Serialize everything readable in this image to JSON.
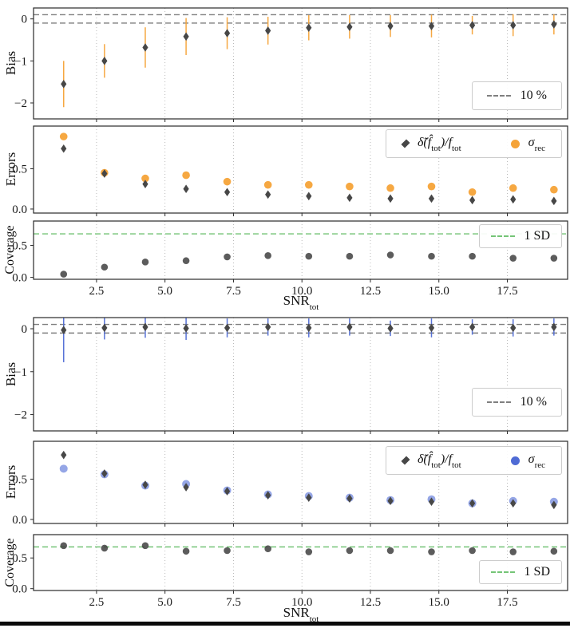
{
  "figure": {
    "xlim": [
      0.2,
      19.7
    ],
    "x": [
      1.3,
      2.79,
      4.28,
      5.77,
      7.27,
      8.76,
      10.25,
      11.74,
      13.23,
      14.73,
      16.22,
      17.71,
      19.2
    ],
    "xticks": [
      2.5,
      5.0,
      7.5,
      10.0,
      12.5,
      15.0,
      17.5
    ],
    "xtick_labels": [
      "2.5",
      "5.0",
      "7.5",
      "10.0",
      "12.5",
      "15.0",
      "17.5"
    ],
    "xlabel": {
      "text": "SNR",
      "sub": "tot"
    },
    "grid": "vertical-dotted",
    "colors": {
      "orange": "#f5a338",
      "blue": "#4f6bd5",
      "dark": "#474747",
      "gray": "#7f7f7f",
      "green": "#74c476"
    }
  },
  "labels": {
    "bias": "Bias",
    "errors": "Errors",
    "coverage": "Coverage",
    "legend_10pct": "10 %",
    "legend_1sd": "1 SD",
    "err_series1": {
      "p1": "δ̃(f̂",
      "s1": "tot",
      "p2": ")/f",
      "s2": "tot"
    },
    "err_series2": {
      "p1": "σ",
      "s1": "rec"
    }
  },
  "chart_data": [
    {
      "name": "bias-top",
      "type": "scatter",
      "ylabel": "Bias",
      "ylim": [
        -2.38,
        0.26
      ],
      "yticks": [
        0,
        -1,
        -2
      ],
      "ytick_labels": [
        "0",
        "−1",
        "−2"
      ],
      "hlines": [
        {
          "y": 0.1,
          "color": "#7f7f7f",
          "label": "10 %"
        },
        {
          "y": -0.1,
          "color": "#7f7f7f"
        }
      ],
      "show_xticklabels": false,
      "series": [
        {
          "name": "bias",
          "marker": "diamond",
          "color": "#474747",
          "y": [
            -1.55,
            -1.0,
            -0.68,
            -0.42,
            -0.34,
            -0.28,
            -0.21,
            -0.19,
            -0.17,
            -0.17,
            -0.15,
            -0.15,
            -0.13
          ],
          "yerr": [
            0.55,
            0.4,
            0.48,
            0.44,
            0.38,
            0.33,
            0.3,
            0.28,
            0.26,
            0.27,
            0.22,
            0.26,
            0.24
          ],
          "err_color": "#f5a338"
        }
      ]
    },
    {
      "name": "errors-top",
      "type": "scatter",
      "ylabel": "Errors",
      "ylim": [
        -0.05,
        1.03
      ],
      "yticks": [
        0.0,
        0.5
      ],
      "ytick_labels": [
        "0.0",
        "0.5"
      ],
      "hlines": [],
      "show_xticklabels": false,
      "series": [
        {
          "name": "delta_f_over_f",
          "marker": "diamond",
          "color": "#474747",
          "y": [
            0.75,
            0.44,
            0.31,
            0.25,
            0.21,
            0.18,
            0.16,
            0.14,
            0.13,
            0.13,
            0.11,
            0.12,
            0.1
          ]
        },
        {
          "name": "sigma_rec",
          "marker": "circle",
          "color": "#f5a338",
          "alpha": 0.95,
          "size": 4.8,
          "y": [
            0.9,
            0.45,
            0.38,
            0.42,
            0.34,
            0.3,
            0.3,
            0.28,
            0.26,
            0.28,
            0.21,
            0.26,
            0.24
          ]
        }
      ]
    },
    {
      "name": "coverage-top",
      "type": "scatter",
      "ylabel": "Coverage",
      "ylim": [
        -0.03,
        0.88
      ],
      "yticks": [
        0.0,
        0.5
      ],
      "ytick_labels": [
        "0.0",
        "0.5"
      ],
      "hlines": [
        {
          "y": 0.68,
          "color": "#74c476",
          "label": "1 SD"
        }
      ],
      "show_xticklabels": true,
      "series": [
        {
          "name": "coverage",
          "marker": "dot",
          "color": "#3f3f3f",
          "alpha": 0.85,
          "size": 4.3,
          "y": [
            0.05,
            0.16,
            0.24,
            0.26,
            0.32,
            0.34,
            0.33,
            0.33,
            0.35,
            0.33,
            0.33,
            0.3,
            0.3
          ]
        }
      ]
    },
    {
      "name": "bias-bottom",
      "type": "scatter",
      "ylabel": "Bias",
      "ylim": [
        -2.38,
        0.26
      ],
      "yticks": [
        0,
        -1,
        -2
      ],
      "ytick_labels": [
        "0",
        "−1",
        "−2"
      ],
      "hlines": [
        {
          "y": 0.1,
          "color": "#7f7f7f",
          "label": "10 %"
        },
        {
          "y": -0.1,
          "color": "#7f7f7f"
        }
      ],
      "show_xticklabels": false,
      "series": [
        {
          "name": "bias",
          "marker": "diamond",
          "color": "#474747",
          "y": [
            -0.03,
            0.02,
            0.04,
            0.01,
            0.02,
            0.04,
            0.02,
            0.04,
            0.01,
            0.02,
            0.04,
            0.02,
            0.04
          ],
          "yerr": [
            [
              0.75,
              0.35
            ],
            0.27,
            0.25,
            0.27,
            0.22,
            0.2,
            0.22,
            0.2,
            0.18,
            0.22,
            0.18,
            0.2,
            0.2
          ],
          "err_color": "#4f6bd5"
        }
      ]
    },
    {
      "name": "errors-bottom",
      "type": "scatter",
      "ylabel": "Errors",
      "ylim": [
        -0.05,
        0.97
      ],
      "yticks": [
        0.0,
        0.5
      ],
      "ytick_labels": [
        "0.0",
        "0.5"
      ],
      "hlines": [],
      "show_xticklabels": false,
      "series": [
        {
          "name": "delta_f_over_f",
          "marker": "diamond",
          "color": "#474747",
          "y": [
            0.8,
            0.57,
            0.43,
            0.4,
            0.35,
            0.3,
            0.27,
            0.26,
            0.23,
            0.22,
            0.2,
            0.2,
            0.18
          ]
        },
        {
          "name": "sigma_rec",
          "marker": "circle",
          "color": "#4f6bd5",
          "alpha": 0.6,
          "size": 5.0,
          "y": [
            0.63,
            0.56,
            0.42,
            0.44,
            0.36,
            0.31,
            0.29,
            0.27,
            0.24,
            0.25,
            0.2,
            0.23,
            0.22
          ]
        }
      ]
    },
    {
      "name": "coverage-bottom",
      "type": "scatter",
      "ylabel": "Coverage",
      "ylim": [
        -0.03,
        0.88
      ],
      "yticks": [
        0.0,
        0.5
      ],
      "ytick_labels": [
        "0.0",
        "0.5"
      ],
      "hlines": [
        {
          "y": 0.68,
          "color": "#74c476",
          "label": "1 SD"
        }
      ],
      "show_xticklabels": true,
      "series": [
        {
          "name": "coverage",
          "marker": "dot",
          "color": "#3f3f3f",
          "alpha": 0.85,
          "size": 4.3,
          "y": [
            0.7,
            0.66,
            0.7,
            0.61,
            0.62,
            0.65,
            0.6,
            0.62,
            0.62,
            0.6,
            0.62,
            0.6,
            0.61
          ]
        }
      ]
    }
  ]
}
